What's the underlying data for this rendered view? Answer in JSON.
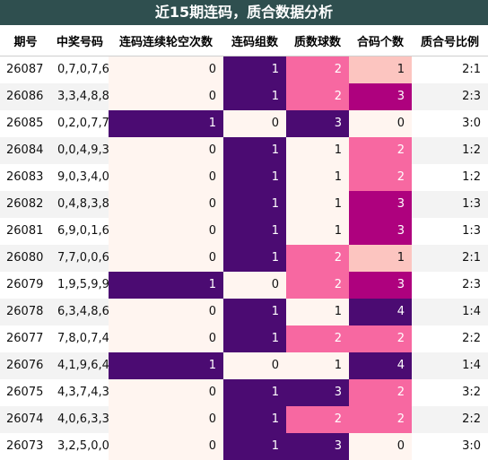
{
  "title": "近15期连码，质合数据分析",
  "columns": [
    "期号",
    "中奖号码",
    "连码连续轮空次数",
    "连码组数",
    "质数球数",
    "合码个数",
    "质合号比例"
  ],
  "rows": [
    {
      "period": "26087",
      "numbers": "0,7,0,7,6",
      "skip": "0",
      "groups": "1",
      "prime": "2",
      "composite": "1",
      "ratio": "2:1"
    },
    {
      "period": "26086",
      "numbers": "3,3,4,8,8",
      "skip": "0",
      "groups": "1",
      "prime": "2",
      "composite": "3",
      "ratio": "2:3"
    },
    {
      "period": "26085",
      "numbers": "0,2,0,7,7",
      "skip": "1",
      "groups": "0",
      "prime": "3",
      "composite": "0",
      "ratio": "3:0"
    },
    {
      "period": "26084",
      "numbers": "0,0,4,9,3",
      "skip": "0",
      "groups": "1",
      "prime": "1",
      "composite": "2",
      "ratio": "1:2"
    },
    {
      "period": "26083",
      "numbers": "9,0,3,4,0",
      "skip": "0",
      "groups": "1",
      "prime": "1",
      "composite": "2",
      "ratio": "1:2"
    },
    {
      "period": "26082",
      "numbers": "0,4,8,3,8",
      "skip": "0",
      "groups": "1",
      "prime": "1",
      "composite": "3",
      "ratio": "1:3"
    },
    {
      "period": "26081",
      "numbers": "6,9,0,1,6",
      "skip": "0",
      "groups": "1",
      "prime": "1",
      "composite": "3",
      "ratio": "1:3"
    },
    {
      "period": "26080",
      "numbers": "7,7,0,0,6",
      "skip": "0",
      "groups": "1",
      "prime": "2",
      "composite": "1",
      "ratio": "2:1"
    },
    {
      "period": "26079",
      "numbers": "1,9,5,9,9",
      "skip": "1",
      "groups": "0",
      "prime": "2",
      "composite": "3",
      "ratio": "2:3"
    },
    {
      "period": "26078",
      "numbers": "6,3,4,8,6",
      "skip": "0",
      "groups": "1",
      "prime": "1",
      "composite": "4",
      "ratio": "1:4"
    },
    {
      "period": "26077",
      "numbers": "7,8,0,7,4",
      "skip": "0",
      "groups": "1",
      "prime": "2",
      "composite": "2",
      "ratio": "2:2"
    },
    {
      "period": "26076",
      "numbers": "4,1,9,6,4",
      "skip": "1",
      "groups": "0",
      "prime": "1",
      "composite": "4",
      "ratio": "1:4"
    },
    {
      "period": "26075",
      "numbers": "4,3,7,4,3",
      "skip": "0",
      "groups": "1",
      "prime": "3",
      "composite": "2",
      "ratio": "3:2"
    },
    {
      "period": "26074",
      "numbers": "4,0,6,3,3",
      "skip": "0",
      "groups": "1",
      "prime": "2",
      "composite": "2",
      "ratio": "2:2"
    },
    {
      "period": "26073",
      "numbers": "3,2,5,0,0",
      "skip": "0",
      "groups": "1",
      "prime": "3",
      "composite": "0",
      "ratio": "3:0"
    }
  ],
  "colors": {
    "title_bg": "#2f4f4f",
    "pale": "#fff5f0",
    "peach": "#fcc5c0",
    "pink": "#f768a1",
    "magenta": "#ae017e",
    "dark_purple": "#4b0b72"
  }
}
